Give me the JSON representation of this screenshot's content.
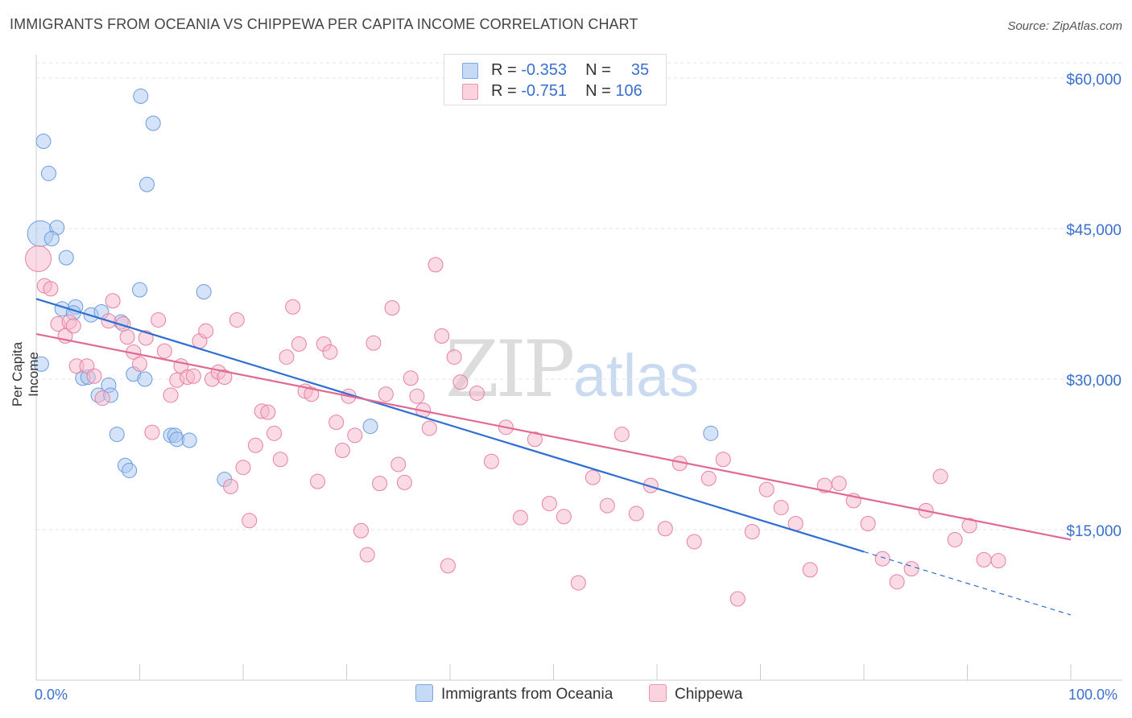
{
  "title": "IMMIGRANTS FROM OCEANIA VS CHIPPEWA PER CAPITA INCOME CORRELATION CHART",
  "source": "Source: ZipAtlas.com",
  "watermark": {
    "zip": "ZIP",
    "atlas": "atlas"
  },
  "legend_top": [
    {
      "r_label": "R =",
      "r_value": "-0.353",
      "n_label": "N =",
      "n_value": "35",
      "color": "#a9c7f0"
    },
    {
      "r_label": "R =",
      "r_value": "-0.751",
      "n_label": "N =",
      "n_value": "106",
      "color": "#f5b8cb"
    }
  ],
  "chart_data": {
    "type": "scatter",
    "title": "IMMIGRANTS FROM OCEANIA VS CHIPPEWA PER CAPITA INCOME CORRELATION CHART",
    "xlabel": "",
    "ylabel": "Per Capita Income",
    "xlim": [
      0,
      100
    ],
    "ylim": [
      0,
      62000
    ],
    "x_tick_labels": [
      "0.0%",
      "100.0%"
    ],
    "y_ticks": [
      15000,
      30000,
      45000,
      60000
    ],
    "y_tick_labels": [
      "$15,000",
      "$30,000",
      "$45,000",
      "$60,000"
    ],
    "grid": true,
    "legend_position": "bottom",
    "series": [
      {
        "name": "Immigrants from Oceania",
        "color": "#a9c7f0",
        "stroke": "#6a9be0",
        "points": [
          [
            0.4,
            44500
          ],
          [
            0.7,
            53700
          ],
          [
            1.2,
            50500
          ],
          [
            2.0,
            45100
          ],
          [
            1.5,
            44000
          ],
          [
            2.9,
            42100
          ],
          [
            2.5,
            37000
          ],
          [
            3.8,
            37200
          ],
          [
            3.6,
            36600
          ],
          [
            5.3,
            36400
          ],
          [
            6.3,
            36700
          ],
          [
            8.2,
            35700
          ],
          [
            10.1,
            58200
          ],
          [
            11.3,
            55500
          ],
          [
            10.7,
            49400
          ],
          [
            10.0,
            38900
          ],
          [
            16.2,
            38700
          ],
          [
            4.5,
            30100
          ],
          [
            5.0,
            30200
          ],
          [
            6.0,
            28400
          ],
          [
            7.0,
            29400
          ],
          [
            7.2,
            28400
          ],
          [
            9.4,
            30500
          ],
          [
            10.5,
            30000
          ],
          [
            7.8,
            24500
          ],
          [
            8.6,
            21400
          ],
          [
            9.0,
            20900
          ],
          [
            13.0,
            24400
          ],
          [
            13.4,
            24400
          ],
          [
            13.6,
            24000
          ],
          [
            14.8,
            23900
          ],
          [
            18.2,
            20000
          ],
          [
            32.3,
            25300
          ],
          [
            65.2,
            24600
          ],
          [
            0.5,
            31500
          ]
        ]
      },
      {
        "name": "Chippewa",
        "color": "#f5b8cb",
        "stroke": "#e8809f",
        "points": [
          [
            0.2,
            42000
          ],
          [
            0.8,
            39300
          ],
          [
            1.4,
            39000
          ],
          [
            2.1,
            35500
          ],
          [
            2.8,
            34300
          ],
          [
            3.2,
            35700
          ],
          [
            3.6,
            35300
          ],
          [
            3.9,
            31300
          ],
          [
            4.9,
            31300
          ],
          [
            5.6,
            30300
          ],
          [
            6.4,
            28100
          ],
          [
            7.4,
            37800
          ],
          [
            7.0,
            35800
          ],
          [
            8.4,
            35500
          ],
          [
            8.8,
            34200
          ],
          [
            9.4,
            32700
          ],
          [
            10.0,
            31500
          ],
          [
            10.6,
            34100
          ],
          [
            11.2,
            24700
          ],
          [
            11.8,
            35900
          ],
          [
            12.4,
            32800
          ],
          [
            13.0,
            28400
          ],
          [
            13.6,
            29900
          ],
          [
            14.0,
            31300
          ],
          [
            14.6,
            30200
          ],
          [
            15.2,
            30300
          ],
          [
            15.8,
            33800
          ],
          [
            16.4,
            34800
          ],
          [
            17.0,
            30000
          ],
          [
            17.6,
            30700
          ],
          [
            18.2,
            30200
          ],
          [
            18.8,
            19300
          ],
          [
            19.4,
            35900
          ],
          [
            20.0,
            21200
          ],
          [
            20.6,
            15900
          ],
          [
            21.2,
            23400
          ],
          [
            21.8,
            26800
          ],
          [
            22.4,
            26700
          ],
          [
            23.0,
            24600
          ],
          [
            23.6,
            22000
          ],
          [
            24.2,
            32200
          ],
          [
            24.8,
            37200
          ],
          [
            25.4,
            33500
          ],
          [
            26.0,
            28800
          ],
          [
            26.6,
            28500
          ],
          [
            27.2,
            19800
          ],
          [
            27.8,
            33500
          ],
          [
            28.4,
            32700
          ],
          [
            29.0,
            25700
          ],
          [
            29.6,
            22900
          ],
          [
            30.2,
            28300
          ],
          [
            30.8,
            24400
          ],
          [
            31.4,
            14900
          ],
          [
            32.0,
            12500
          ],
          [
            32.6,
            33600
          ],
          [
            33.2,
            19600
          ],
          [
            33.8,
            28500
          ],
          [
            34.4,
            37100
          ],
          [
            35.0,
            21500
          ],
          [
            35.6,
            19700
          ],
          [
            36.2,
            30100
          ],
          [
            36.8,
            28300
          ],
          [
            37.4,
            26900
          ],
          [
            38.0,
            25100
          ],
          [
            38.6,
            41400
          ],
          [
            39.2,
            34300
          ],
          [
            39.8,
            11400
          ],
          [
            40.4,
            32200
          ],
          [
            41.0,
            29700
          ],
          [
            42.6,
            28600
          ],
          [
            44.0,
            21800
          ],
          [
            45.4,
            25200
          ],
          [
            46.8,
            16200
          ],
          [
            48.2,
            24000
          ],
          [
            49.6,
            17600
          ],
          [
            51.0,
            16300
          ],
          [
            52.4,
            9700
          ],
          [
            53.8,
            20200
          ],
          [
            55.2,
            17400
          ],
          [
            56.6,
            24500
          ],
          [
            58.0,
            16600
          ],
          [
            59.4,
            19400
          ],
          [
            60.8,
            15100
          ],
          [
            62.2,
            21600
          ],
          [
            63.6,
            13800
          ],
          [
            65.0,
            20100
          ],
          [
            66.4,
            22000
          ],
          [
            67.8,
            8100
          ],
          [
            69.2,
            14800
          ],
          [
            70.6,
            19000
          ],
          [
            72.0,
            17200
          ],
          [
            73.4,
            15600
          ],
          [
            74.8,
            11000
          ],
          [
            76.2,
            19400
          ],
          [
            77.6,
            19600
          ],
          [
            79.0,
            17900
          ],
          [
            80.4,
            15600
          ],
          [
            81.8,
            12100
          ],
          [
            83.2,
            9800
          ],
          [
            84.6,
            11100
          ],
          [
            86.0,
            16900
          ],
          [
            87.4,
            20300
          ],
          [
            88.8,
            14000
          ],
          [
            90.2,
            15400
          ],
          [
            91.6,
            12000
          ],
          [
            93.0,
            11900
          ]
        ]
      }
    ],
    "trendlines": [
      {
        "series": "Immigrants from Oceania",
        "color": "#2f6fd1",
        "x_start": 0,
        "y_start": 38000,
        "x_solid_end": 80,
        "x_end": 100,
        "y_end": 6500
      },
      {
        "series": "Chippewa",
        "color": "#e06a95",
        "x_start": 0,
        "y_start": 34500,
        "x_end": 100,
        "y_end": 14000
      }
    ]
  },
  "legend_bottom": [
    {
      "label": "Immigrants from Oceania",
      "color": "#a9c7f0"
    },
    {
      "label": "Chippewa",
      "color": "#f5b8cb"
    }
  ]
}
